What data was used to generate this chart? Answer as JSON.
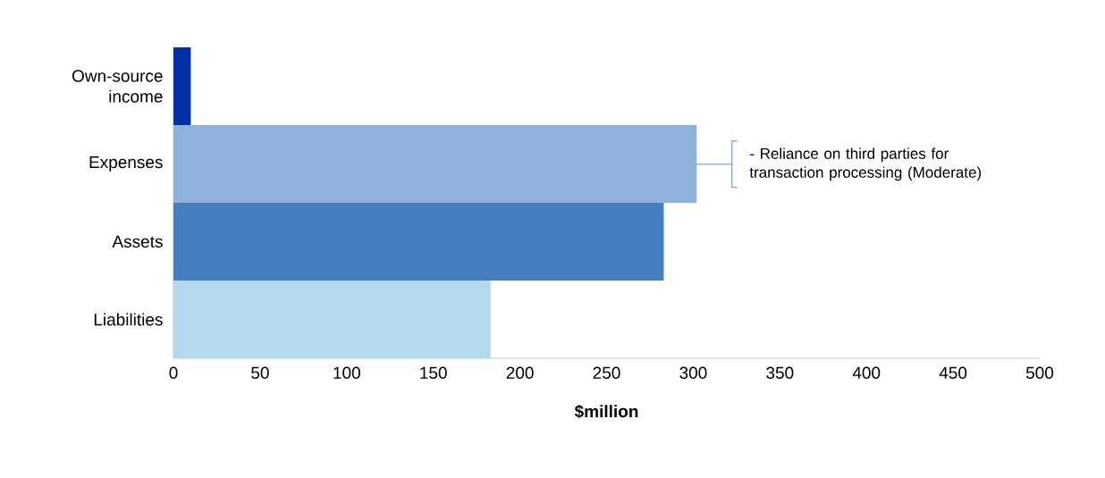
{
  "chart_data": {
    "type": "bar",
    "orientation": "horizontal",
    "categories": [
      "Own-source income",
      "Expenses",
      "Assets",
      "Liabilities"
    ],
    "values": [
      10,
      302,
      283,
      183
    ],
    "colors": [
      "#0030a8",
      "#8fb2da",
      "#457fc2",
      "#b4d8ec"
    ],
    "xlabel": "$million",
    "xlim": [
      0,
      500
    ],
    "xticks": [
      0,
      50,
      100,
      150,
      200,
      250,
      300,
      350,
      400,
      450,
      500
    ],
    "annotations": [
      "- Reliance on third parties for transaction processing (Moderate)"
    ]
  }
}
